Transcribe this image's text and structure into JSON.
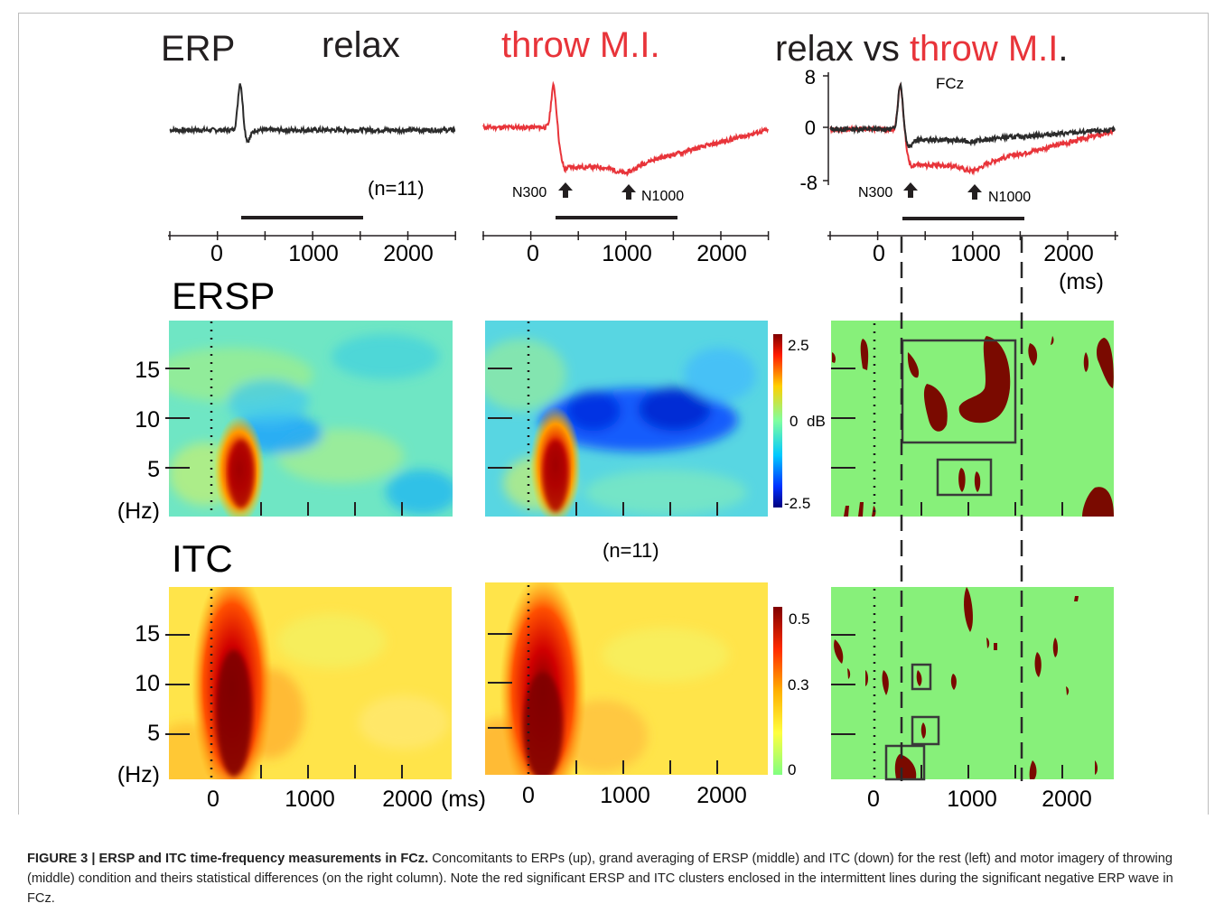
{
  "panel_titles": {
    "erp": "ERP",
    "relax": "relax",
    "throw": "throw M.I.",
    "relax_vs": "relax vs ",
    "throw_vs": "throw M.I",
    "period": ".",
    "ersp": "ERSP",
    "itc": "ITC"
  },
  "erp": {
    "n_label": "(n=11)",
    "channel": "FCz",
    "n300": "N300",
    "n1000": "N1000",
    "y_ticks": [
      "8",
      "0",
      "-8"
    ],
    "x_ticks": [
      "0",
      "1000",
      "2000"
    ],
    "x_unit": "(ms)"
  },
  "tf": {
    "freq_ticks": [
      "15",
      "10",
      "5"
    ],
    "freq_unit": "(Hz)",
    "ersp_scale": {
      "max": "2.5",
      "mid": "0",
      "unit": "dB",
      "min": "-2.5"
    },
    "itc_scale": {
      "max": "0.5",
      "mid": "0.3",
      "min": "0"
    },
    "n_label": "(n=11)",
    "x_ticks": [
      "0",
      "1000",
      "2000"
    ],
    "x_unit": "(ms)"
  },
  "colors": {
    "relax": "#2b2b2b",
    "throw": "#e8343a",
    "sig": "#7a0a00",
    "nonsig": "#87f07a"
  },
  "caption": {
    "head": "FIGURE 3 | ERSP and ITC time-frequency measurements in FCz.",
    "body": " Concomitants to ERPs (up), grand averaging of ERSP (middle) and ITC (down) for the rest (left) and motor imagery of throwing (middle) condition and theirs statistical differences (on the right column). Note the red significant ERSP and ITC clusters enclosed in the intermittent lines during the significant negative ERP wave in FCz."
  }
}
